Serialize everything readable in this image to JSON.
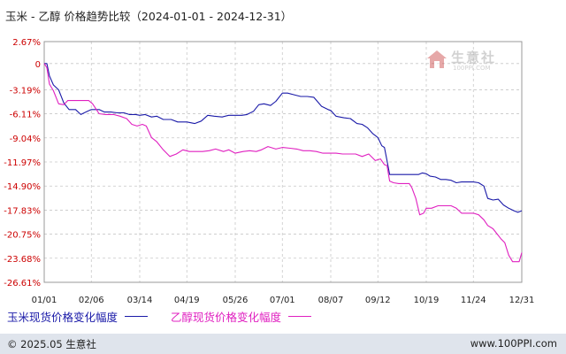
{
  "header": {
    "title": "玉米 - 乙醇 价格趋势比较（2024-01-01 - 2024-12-31）"
  },
  "watermark": {
    "name": "生意社",
    "url": "100PPI.COM"
  },
  "footer": {
    "copyright": "© 2025.05 生意社",
    "site": "www.100PPI.com"
  },
  "colors": {
    "corn": "#1a1aa8",
    "ethanol": "#e020c0",
    "axis_label": "#cc0000",
    "grid": "#c8c8c8"
  },
  "chart_data": {
    "type": "line",
    "title": "玉米 - 乙醇 价格趋势比较（2024-01-01 - 2024-12-31）",
    "xlabel": "",
    "ylabel": "",
    "xlim": [
      "2024-01-01",
      "2024-12-31"
    ],
    "ylim": [
      -26.61,
      2.67
    ],
    "y_ticks": [
      "2.67%",
      "0",
      "-3.19%",
      "-6.11%",
      "-9.04%",
      "-11.97%",
      "-14.90%",
      "-17.83%",
      "-20.75%",
      "-23.68%",
      "-26.61%"
    ],
    "y_tick_values": [
      2.67,
      0,
      -3.19,
      -6.11,
      -9.04,
      -11.97,
      -14.9,
      -17.83,
      -20.75,
      -23.68,
      -26.61
    ],
    "x_ticks": [
      "01/01",
      "02/06",
      "03/14",
      "04/19",
      "05/26",
      "07/01",
      "08/07",
      "09/12",
      "10/19",
      "11/24",
      "12/31"
    ],
    "x_tick_dates": [
      "2024-01-01",
      "2024-02-06",
      "2024-03-14",
      "2024-04-19",
      "2024-05-26",
      "2024-07-01",
      "2024-08-07",
      "2024-09-12",
      "2024-10-19",
      "2024-11-24",
      "2024-12-31"
    ],
    "grid": true,
    "legend_position": "bottom-left",
    "series": [
      {
        "name": "玉米现货价格变化幅度",
        "color": "#1a1aa8",
        "points": [
          [
            "2024-01-01",
            0
          ],
          [
            "2024-01-03",
            0
          ],
          [
            "2024-01-05",
            -1.5
          ],
          [
            "2024-01-08",
            -2.6
          ],
          [
            "2024-01-12",
            -3.2
          ],
          [
            "2024-01-16",
            -4.8
          ],
          [
            "2024-01-20",
            -5.6
          ],
          [
            "2024-01-25",
            -5.6
          ],
          [
            "2024-01-29",
            -6.2
          ],
          [
            "2024-02-03",
            -5.8
          ],
          [
            "2024-02-06",
            -5.6
          ],
          [
            "2024-02-12",
            -5.6
          ],
          [
            "2024-02-16",
            -5.9
          ],
          [
            "2024-02-21",
            -5.9
          ],
          [
            "2024-02-26",
            -6.0
          ],
          [
            "2024-03-02",
            -6.0
          ],
          [
            "2024-03-06",
            -6.2
          ],
          [
            "2024-03-11",
            -6.2
          ],
          [
            "2024-03-14",
            -6.3
          ],
          [
            "2024-03-18",
            -6.2
          ],
          [
            "2024-03-23",
            -6.5
          ],
          [
            "2024-03-27",
            -6.4
          ],
          [
            "2024-04-01",
            -6.8
          ],
          [
            "2024-04-07",
            -6.8
          ],
          [
            "2024-04-12",
            -7.1
          ],
          [
            "2024-04-19",
            -7.1
          ],
          [
            "2024-04-25",
            -7.3
          ],
          [
            "2024-04-30",
            -7.0
          ],
          [
            "2024-05-05",
            -6.3
          ],
          [
            "2024-05-10",
            -6.4
          ],
          [
            "2024-05-16",
            -6.5
          ],
          [
            "2024-05-21",
            -6.3
          ],
          [
            "2024-05-26",
            -6.3
          ],
          [
            "2024-05-31",
            -6.3
          ],
          [
            "2024-06-04",
            -6.2
          ],
          [
            "2024-06-09",
            -5.8
          ],
          [
            "2024-06-13",
            -5.0
          ],
          [
            "2024-06-17",
            -4.9
          ],
          [
            "2024-06-22",
            -5.1
          ],
          [
            "2024-06-26",
            -4.6
          ],
          [
            "2024-07-01",
            -3.6
          ],
          [
            "2024-07-05",
            -3.6
          ],
          [
            "2024-07-10",
            -3.8
          ],
          [
            "2024-07-15",
            -4.0
          ],
          [
            "2024-07-20",
            -4.0
          ],
          [
            "2024-07-25",
            -4.1
          ],
          [
            "2024-07-31",
            -5.2
          ],
          [
            "2024-08-05",
            -5.6
          ],
          [
            "2024-08-07",
            -5.7
          ],
          [
            "2024-08-11",
            -6.4
          ],
          [
            "2024-08-17",
            -6.6
          ],
          [
            "2024-08-22",
            -6.7
          ],
          [
            "2024-08-27",
            -7.3
          ],
          [
            "2024-08-31",
            -7.4
          ],
          [
            "2024-09-04",
            -7.8
          ],
          [
            "2024-09-08",
            -8.5
          ],
          [
            "2024-09-12",
            -9.0
          ],
          [
            "2024-09-15",
            -10.0
          ],
          [
            "2024-09-17",
            -10.2
          ],
          [
            "2024-09-19",
            -11.8
          ],
          [
            "2024-09-21",
            -13.5
          ],
          [
            "2024-09-23",
            -13.5
          ],
          [
            "2024-09-28",
            -13.5
          ],
          [
            "2024-10-03",
            -13.5
          ],
          [
            "2024-10-08",
            -13.5
          ],
          [
            "2024-10-13",
            -13.5
          ],
          [
            "2024-10-16",
            -13.3
          ],
          [
            "2024-10-19",
            -13.4
          ],
          [
            "2024-10-22",
            -13.7
          ],
          [
            "2024-10-26",
            -13.8
          ],
          [
            "2024-10-30",
            -14.1
          ],
          [
            "2024-11-03",
            -14.1
          ],
          [
            "2024-11-07",
            -14.2
          ],
          [
            "2024-11-11",
            -14.5
          ],
          [
            "2024-11-15",
            -14.4
          ],
          [
            "2024-11-19",
            -14.4
          ],
          [
            "2024-11-24",
            -14.4
          ],
          [
            "2024-11-28",
            -14.5
          ],
          [
            "2024-12-02",
            -14.9
          ],
          [
            "2024-12-05",
            -16.4
          ],
          [
            "2024-12-09",
            -16.6
          ],
          [
            "2024-12-13",
            -16.5
          ],
          [
            "2024-12-17",
            -17.2
          ],
          [
            "2024-12-21",
            -17.6
          ],
          [
            "2024-12-25",
            -17.9
          ],
          [
            "2024-12-28",
            -18.1
          ],
          [
            "2024-12-31",
            -17.9
          ]
        ]
      },
      {
        "name": "乙醇现货价格变化幅度",
        "color": "#e020c0",
        "points": [
          [
            "2024-01-01",
            0
          ],
          [
            "2024-01-03",
            -0.5
          ],
          [
            "2024-01-05",
            -2.5
          ],
          [
            "2024-01-08",
            -3.3
          ],
          [
            "2024-01-12",
            -4.9
          ],
          [
            "2024-01-16",
            -5.0
          ],
          [
            "2024-01-19",
            -4.5
          ],
          [
            "2024-01-24",
            -4.5
          ],
          [
            "2024-01-29",
            -4.5
          ],
          [
            "2024-02-04",
            -4.5
          ],
          [
            "2024-02-07",
            -4.9
          ],
          [
            "2024-02-12",
            -6.1
          ],
          [
            "2024-02-17",
            -6.2
          ],
          [
            "2024-02-23",
            -6.2
          ],
          [
            "2024-02-28",
            -6.4
          ],
          [
            "2024-03-04",
            -6.7
          ],
          [
            "2024-03-08",
            -7.4
          ],
          [
            "2024-03-12",
            -7.6
          ],
          [
            "2024-03-16",
            -7.4
          ],
          [
            "2024-03-19",
            -7.6
          ],
          [
            "2024-03-23",
            -9.0
          ],
          [
            "2024-03-27",
            -9.5
          ],
          [
            "2024-04-01",
            -10.5
          ],
          [
            "2024-04-06",
            -11.3
          ],
          [
            "2024-04-11",
            -11.0
          ],
          [
            "2024-04-16",
            -10.5
          ],
          [
            "2024-04-21",
            -10.7
          ],
          [
            "2024-04-26",
            -10.7
          ],
          [
            "2024-05-01",
            -10.7
          ],
          [
            "2024-05-06",
            -10.6
          ],
          [
            "2024-05-11",
            -10.4
          ],
          [
            "2024-05-17",
            -10.7
          ],
          [
            "2024-05-21",
            -10.5
          ],
          [
            "2024-05-26",
            -10.9
          ],
          [
            "2024-06-01",
            -10.7
          ],
          [
            "2024-06-06",
            -10.6
          ],
          [
            "2024-06-11",
            -10.7
          ],
          [
            "2024-06-15",
            -10.5
          ],
          [
            "2024-06-20",
            -10.1
          ],
          [
            "2024-06-26",
            -10.4
          ],
          [
            "2024-07-01",
            -10.2
          ],
          [
            "2024-07-07",
            -10.3
          ],
          [
            "2024-07-12",
            -10.4
          ],
          [
            "2024-07-17",
            -10.6
          ],
          [
            "2024-07-22",
            -10.6
          ],
          [
            "2024-07-27",
            -10.7
          ],
          [
            "2024-08-01",
            -10.9
          ],
          [
            "2024-08-06",
            -10.9
          ],
          [
            "2024-08-11",
            -10.9
          ],
          [
            "2024-08-16",
            -11.0
          ],
          [
            "2024-08-21",
            -11.0
          ],
          [
            "2024-08-26",
            -11.0
          ],
          [
            "2024-08-31",
            -11.3
          ],
          [
            "2024-09-05",
            -11.0
          ],
          [
            "2024-09-10",
            -11.8
          ],
          [
            "2024-09-14",
            -11.6
          ],
          [
            "2024-09-17",
            -12.3
          ],
          [
            "2024-09-19",
            -12.4
          ],
          [
            "2024-09-21",
            -14.3
          ],
          [
            "2024-09-24",
            -14.5
          ],
          [
            "2024-09-28",
            -14.6
          ],
          [
            "2024-10-03",
            -14.6
          ],
          [
            "2024-10-06",
            -14.6
          ],
          [
            "2024-10-08",
            -15.1
          ],
          [
            "2024-10-11",
            -16.4
          ],
          [
            "2024-10-14",
            -18.4
          ],
          [
            "2024-10-17",
            -18.2
          ],
          [
            "2024-10-19",
            -17.6
          ],
          [
            "2024-10-23",
            -17.6
          ],
          [
            "2024-10-28",
            -17.3
          ],
          [
            "2024-11-02",
            -17.3
          ],
          [
            "2024-11-07",
            -17.3
          ],
          [
            "2024-11-11",
            -17.6
          ],
          [
            "2024-11-15",
            -18.2
          ],
          [
            "2024-11-19",
            -18.2
          ],
          [
            "2024-11-24",
            -18.2
          ],
          [
            "2024-11-28",
            -18.4
          ],
          [
            "2024-12-02",
            -19.0
          ],
          [
            "2024-12-05",
            -19.7
          ],
          [
            "2024-12-09",
            -20.1
          ],
          [
            "2024-12-12",
            -20.7
          ],
          [
            "2024-12-15",
            -21.3
          ],
          [
            "2024-12-18",
            -21.8
          ],
          [
            "2024-12-21",
            -23.3
          ],
          [
            "2024-12-24",
            -24.1
          ],
          [
            "2024-12-27",
            -24.1
          ],
          [
            "2024-12-29",
            -24.1
          ],
          [
            "2024-12-31",
            -23.0
          ]
        ]
      }
    ]
  }
}
